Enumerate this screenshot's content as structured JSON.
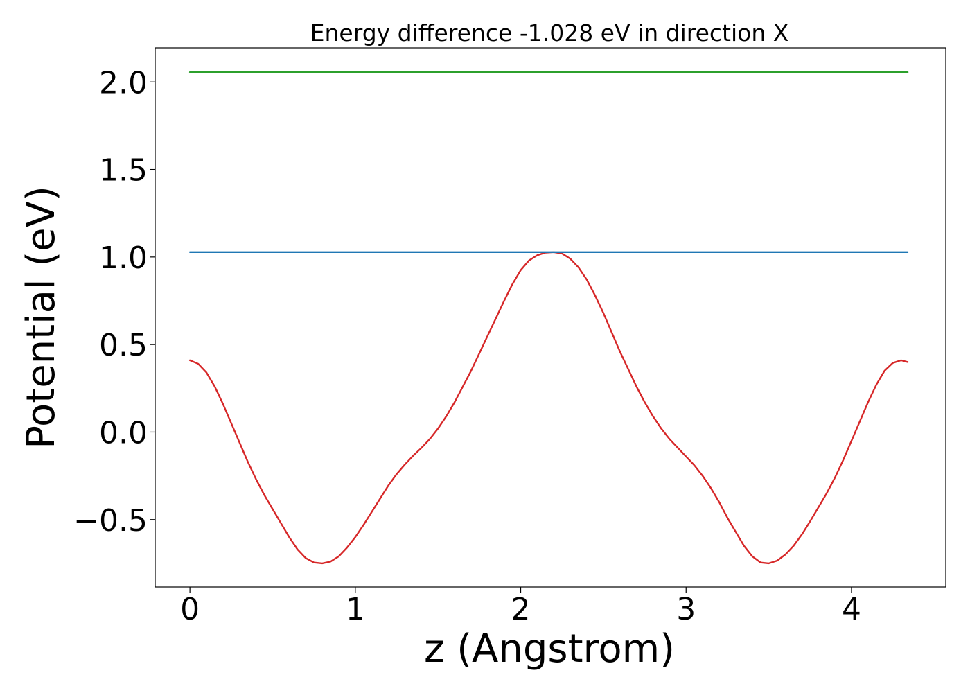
{
  "chart_data": {
    "type": "line",
    "title": "Energy difference -1.028 eV in direction X",
    "xlabel": "z (Angstrom)",
    "ylabel": "Potential (eV)",
    "xlim": [
      -0.21,
      4.57
    ],
    "ylim": [
      -0.885,
      2.195
    ],
    "xticks": [
      0,
      1,
      2,
      3,
      4
    ],
    "xtick_labels": [
      "0",
      "1",
      "2",
      "3",
      "4"
    ],
    "yticks": [
      -0.5,
      0.0,
      0.5,
      1.0,
      1.5,
      2.0
    ],
    "ytick_labels": [
      "−0.5",
      "0.0",
      "0.5",
      "1.0",
      "1.5",
      "2.0"
    ],
    "grid": false,
    "series": [
      {
        "color": "#d62728",
        "x": [
          0.0,
          0.05,
          0.1,
          0.15,
          0.2,
          0.25,
          0.3,
          0.35,
          0.4,
          0.45,
          0.5,
          0.55,
          0.6,
          0.65,
          0.7,
          0.75,
          0.8,
          0.85,
          0.9,
          0.95,
          1.0,
          1.05,
          1.1,
          1.15,
          1.2,
          1.25,
          1.3,
          1.35,
          1.4,
          1.45,
          1.5,
          1.55,
          1.6,
          1.65,
          1.7,
          1.75,
          1.8,
          1.85,
          1.9,
          1.95,
          2.0,
          2.05,
          2.1,
          2.15,
          2.2,
          2.25,
          2.3,
          2.35,
          2.4,
          2.45,
          2.5,
          2.55,
          2.6,
          2.65,
          2.7,
          2.75,
          2.8,
          2.85,
          2.9,
          2.95,
          3.0,
          3.05,
          3.1,
          3.15,
          3.2,
          3.25,
          3.3,
          3.35,
          3.4,
          3.45,
          3.5,
          3.55,
          3.6,
          3.65,
          3.7,
          3.75,
          3.8,
          3.85,
          3.9,
          3.95,
          4.0,
          4.05,
          4.1,
          4.15,
          4.2,
          4.25,
          4.3,
          4.34
        ],
        "y": [
          0.41,
          0.39,
          0.34,
          0.26,
          0.16,
          0.05,
          -0.06,
          -0.17,
          -0.27,
          -0.36,
          -0.44,
          -0.52,
          -0.6,
          -0.67,
          -0.72,
          -0.745,
          -0.75,
          -0.74,
          -0.71,
          -0.66,
          -0.6,
          -0.53,
          -0.455,
          -0.38,
          -0.305,
          -0.24,
          -0.185,
          -0.135,
          -0.09,
          -0.04,
          0.02,
          0.09,
          0.17,
          0.26,
          0.35,
          0.45,
          0.55,
          0.65,
          0.75,
          0.845,
          0.925,
          0.98,
          1.01,
          1.025,
          1.028,
          1.02,
          0.99,
          0.94,
          0.87,
          0.78,
          0.68,
          0.57,
          0.46,
          0.36,
          0.26,
          0.17,
          0.09,
          0.02,
          -0.04,
          -0.09,
          -0.14,
          -0.19,
          -0.25,
          -0.32,
          -0.4,
          -0.49,
          -0.57,
          -0.65,
          -0.71,
          -0.745,
          -0.75,
          -0.735,
          -0.7,
          -0.65,
          -0.585,
          -0.51,
          -0.43,
          -0.35,
          -0.26,
          -0.16,
          -0.05,
          0.06,
          0.17,
          0.27,
          0.35,
          0.395,
          0.41,
          0.4
        ]
      },
      {
        "color": "#1f77b4",
        "x": [
          0.0,
          4.34
        ],
        "y": [
          1.028,
          1.028
        ]
      },
      {
        "color": "#2ca02c",
        "x": [
          0.0,
          4.34
        ],
        "y": [
          2.056,
          2.056
        ]
      }
    ]
  }
}
